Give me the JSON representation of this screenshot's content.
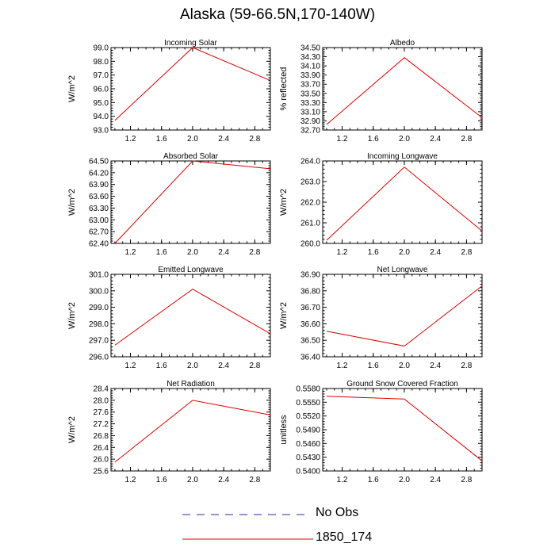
{
  "title": "Alaska (59-66.5N,170-140W)",
  "legend": [
    {
      "label": "No Obs",
      "color": "#2a2aa0",
      "style": "dashed"
    },
    {
      "label": "1850_174",
      "color": "#e00000",
      "style": "solid"
    }
  ],
  "chart_data": [
    {
      "type": "line",
      "title": "Incoming Solar",
      "ylabel": "W/m^2",
      "xlim": [
        0.95,
        3.0
      ],
      "ylim": [
        93.0,
        99.0
      ],
      "xticks": [
        "1.2",
        "1.6",
        "2.0",
        "2.4",
        "2.8"
      ],
      "yticks": [
        "93.0",
        "94.0",
        "95.0",
        "96.0",
        "97.0",
        "98.0",
        "99.0"
      ],
      "series": [
        {
          "name": "1850_174",
          "x": [
            1,
            2,
            3
          ],
          "values": [
            93.7,
            99.0,
            96.6
          ]
        }
      ]
    },
    {
      "type": "line",
      "title": "Albedo",
      "ylabel": "% reflected",
      "xlim": [
        0.95,
        3.0
      ],
      "ylim": [
        32.7,
        34.5
      ],
      "xticks": [
        "1.2",
        "1.6",
        "2.0",
        "2.4",
        "2.8"
      ],
      "yticks": [
        "32.70",
        "32.90",
        "33.10",
        "33.30",
        "33.50",
        "33.70",
        "33.90",
        "34.10",
        "34.30",
        "34.50"
      ],
      "series": [
        {
          "name": "1850_174",
          "x": [
            1,
            2,
            3
          ],
          "values": [
            32.82,
            34.28,
            32.97
          ]
        }
      ]
    },
    {
      "type": "line",
      "title": "Absorbed Solar",
      "ylabel": "W/m^2",
      "xlim": [
        0.95,
        3.0
      ],
      "ylim": [
        62.4,
        64.5
      ],
      "xticks": [
        "1.2",
        "1.6",
        "2.0",
        "2.4",
        "2.8"
      ],
      "yticks": [
        "62.40",
        "62.70",
        "63.00",
        "63.30",
        "63.60",
        "63.90",
        "64.20",
        "64.50"
      ],
      "series": [
        {
          "name": "1850_174",
          "x": [
            1,
            2,
            3
          ],
          "values": [
            62.4,
            64.5,
            64.3
          ]
        }
      ]
    },
    {
      "type": "line",
      "title": "Incoming Longwave",
      "ylabel": "W/m^2",
      "xlim": [
        0.95,
        3.0
      ],
      "ylim": [
        260.0,
        264.0
      ],
      "xticks": [
        "1.2",
        "1.6",
        "2.0",
        "2.4",
        "2.8"
      ],
      "yticks": [
        "260.0",
        "261.0",
        "262.0",
        "263.0",
        "264.0"
      ],
      "series": [
        {
          "name": "1850_174",
          "x": [
            1,
            2,
            3
          ],
          "values": [
            260.15,
            263.7,
            260.6
          ]
        }
      ]
    },
    {
      "type": "line",
      "title": "Emitted Longwave",
      "ylabel": "W/m^2",
      "xlim": [
        0.95,
        3.0
      ],
      "ylim": [
        296.0,
        301.0
      ],
      "xticks": [
        "1.2",
        "1.6",
        "2.0",
        "2.4",
        "2.8"
      ],
      "yticks": [
        "296.0",
        "297.0",
        "298.0",
        "299.0",
        "300.0",
        "301.0"
      ],
      "series": [
        {
          "name": "1850_174",
          "x": [
            1,
            2,
            3
          ],
          "values": [
            296.7,
            300.1,
            297.4
          ]
        }
      ]
    },
    {
      "type": "line",
      "title": "Net Longwave",
      "ylabel": "W/m^2",
      "xlim": [
        0.95,
        3.0
      ],
      "ylim": [
        36.4,
        36.9
      ],
      "xticks": [
        "1.2",
        "1.6",
        "2.0",
        "2.4",
        "2.8"
      ],
      "yticks": [
        "36.40",
        "36.50",
        "36.60",
        "36.70",
        "36.80",
        "36.90"
      ],
      "series": [
        {
          "name": "1850_174",
          "x": [
            1,
            2,
            3
          ],
          "values": [
            36.555,
            36.465,
            36.83
          ]
        }
      ]
    },
    {
      "type": "line",
      "title": "Net Radiation",
      "ylabel": "W/m^2",
      "xlim": [
        0.95,
        3.0
      ],
      "ylim": [
        25.6,
        28.4
      ],
      "xticks": [
        "1.2",
        "1.6",
        "2.0",
        "2.4",
        "2.8"
      ],
      "yticks": [
        "25.6",
        "26.0",
        "26.4",
        "26.8",
        "27.2",
        "27.6",
        "28.0",
        "28.4"
      ],
      "series": [
        {
          "name": "1850_174",
          "x": [
            1,
            2,
            3
          ],
          "values": [
            25.9,
            28.0,
            27.5
          ]
        }
      ]
    },
    {
      "type": "line",
      "title": "Ground Snow Covered Fraction",
      "ylabel": "unitless",
      "xlim": [
        0.95,
        3.0
      ],
      "ylim": [
        0.54,
        0.558
      ],
      "xticks": [
        "1.2",
        "1.6",
        "2.0",
        "2.4",
        "2.8"
      ],
      "yticks": [
        "0.5400",
        "0.5430",
        "0.5460",
        "0.5490",
        "0.5520",
        "0.5550",
        "0.5580"
      ],
      "series": [
        {
          "name": "1850_174",
          "x": [
            1,
            2,
            3
          ],
          "values": [
            0.5563,
            0.5557,
            0.5422
          ]
        }
      ]
    }
  ]
}
